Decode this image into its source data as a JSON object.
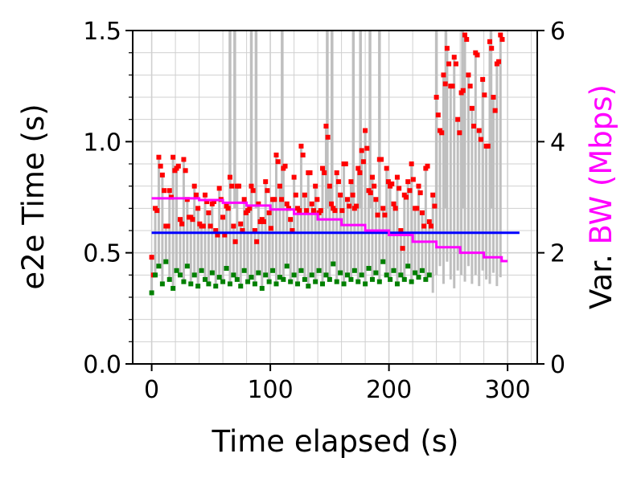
{
  "chart_data": {
    "type": "scatter",
    "x_axis": {
      "label": "Time elapsed (s)",
      "range": [
        -16,
        325
      ],
      "ticks": [
        0,
        100,
        200,
        300
      ],
      "tick_labels": [
        "0",
        "100",
        "200",
        "300"
      ],
      "minor_step": 20
    },
    "y_axis_left": {
      "label": "e2e Time (s)",
      "range": [
        0,
        1.5
      ],
      "ticks": [
        0,
        0.5,
        1.0,
        1.5
      ],
      "tick_labels": [
        "0.0",
        "0.5",
        "1.0",
        "1.5"
      ],
      "minor_step": 0.1
    },
    "y_axis_right": {
      "label_parts": [
        {
          "text": "Var. ",
          "color": "#000000"
        },
        {
          "text": "BW (Mbps)",
          "color": "#ff00ff"
        }
      ],
      "range": [
        0,
        6
      ],
      "ticks": [
        0,
        2,
        4,
        6
      ],
      "tick_labels": [
        "0",
        "2",
        "4",
        "6"
      ]
    },
    "grid": true,
    "legend": "none",
    "colors": {
      "e2e_trace": "#bfbfbf",
      "red_points": "#ff0000",
      "green_points": "#008000",
      "threshold": "#0000ff",
      "bandwidth": "#ff00ff"
    },
    "threshold_line": {
      "x": [
        0,
        310
      ],
      "y": 0.59
    },
    "bandwidth_series": {
      "x": [
        0,
        20,
        40,
        60,
        80,
        100,
        120,
        140,
        160,
        180,
        200,
        220,
        240,
        260,
        280,
        295,
        300
      ],
      "y": [
        2.98,
        2.98,
        2.95,
        2.9,
        2.85,
        2.78,
        2.7,
        2.6,
        2.5,
        2.4,
        2.32,
        2.2,
        2.1,
        2.0,
        1.92,
        1.85,
        1.85
      ]
    },
    "e2e_samples": {
      "x": [
        0,
        3,
        6,
        9,
        12,
        15,
        18,
        21,
        24,
        27,
        30,
        33,
        36,
        39,
        42,
        45,
        48,
        51,
        54,
        57,
        60,
        63,
        66,
        69,
        72,
        75,
        78,
        81,
        84,
        87,
        90,
        93,
        96,
        99,
        102,
        105,
        108,
        111,
        114,
        117,
        120,
        123,
        126,
        129,
        132,
        135,
        138,
        141,
        144,
        147,
        150,
        153,
        156,
        159,
        162,
        165,
        168,
        171,
        174,
        177,
        180,
        183,
        186,
        189,
        192,
        195,
        198,
        201,
        204,
        207,
        210,
        213,
        216,
        219,
        222,
        225,
        228,
        231,
        234,
        237,
        240,
        243,
        246,
        249,
        252,
        255,
        258,
        261,
        264,
        267,
        270,
        273,
        276,
        279,
        282,
        285,
        288,
        291,
        294
      ],
      "red": [
        0.48,
        0.7,
        0.93,
        0.85,
        0.62,
        0.78,
        0.93,
        0.88,
        0.65,
        0.92,
        0.74,
        0.66,
        0.8,
        0.7,
        0.62,
        0.76,
        0.68,
        0.72,
        0.6,
        0.79,
        0.66,
        0.71,
        0.84,
        0.62,
        0.8,
        0.63,
        0.74,
        0.69,
        0.8,
        0.6,
        0.72,
        0.65,
        0.82,
        0.68,
        0.74,
        0.94,
        0.8,
        0.88,
        0.72,
        0.65,
        0.84,
        0.7,
        0.98,
        0.76,
        0.86,
        0.72,
        0.8,
        0.68,
        0.88,
        1.07,
        0.8,
        0.7,
        0.86,
        0.76,
        0.9,
        0.74,
        0.82,
        0.7,
        0.88,
        0.96,
        1.05,
        0.78,
        0.84,
        0.74,
        0.92,
        0.7,
        0.88,
        0.8,
        0.72,
        0.84,
        0.6,
        0.76,
        0.82,
        0.9,
        0.7,
        0.8,
        0.68,
        0.88,
        0.64,
        0.76,
        1.2,
        1.05,
        1.3,
        1.42,
        1.25,
        1.38,
        1.1,
        1.22,
        1.48,
        1.3,
        1.15,
        1.4,
        1.05,
        1.28,
        0.98,
        1.45,
        1.2,
        1.35,
        1.48
      ],
      "green": [
        0.32,
        0.4,
        0.44,
        0.36,
        0.46,
        0.38,
        0.34,
        0.42,
        0.4,
        0.37,
        0.44,
        0.36,
        0.4,
        0.35,
        0.42,
        0.38,
        0.36,
        0.41,
        0.35,
        0.39,
        0.37,
        0.43,
        0.36,
        0.4,
        0.38,
        0.35,
        0.42,
        0.37,
        0.39,
        0.36,
        0.41,
        0.34,
        0.4,
        0.37,
        0.42,
        0.36,
        0.39,
        0.38,
        0.44,
        0.37,
        0.4,
        0.36,
        0.42,
        0.38,
        0.35,
        0.4,
        0.37,
        0.42,
        0.36,
        0.4,
        0.38,
        0.45,
        0.37,
        0.41,
        0.36,
        0.4,
        0.38,
        0.42,
        0.37,
        0.4,
        0.36,
        0.43,
        0.38,
        0.41,
        0.37,
        0.46,
        0.4,
        0.38,
        0.42,
        0.36,
        0.4,
        0.38,
        0.44,
        0.37,
        0.41,
        0.39,
        0.42,
        0.38,
        0.4
      ]
    }
  }
}
